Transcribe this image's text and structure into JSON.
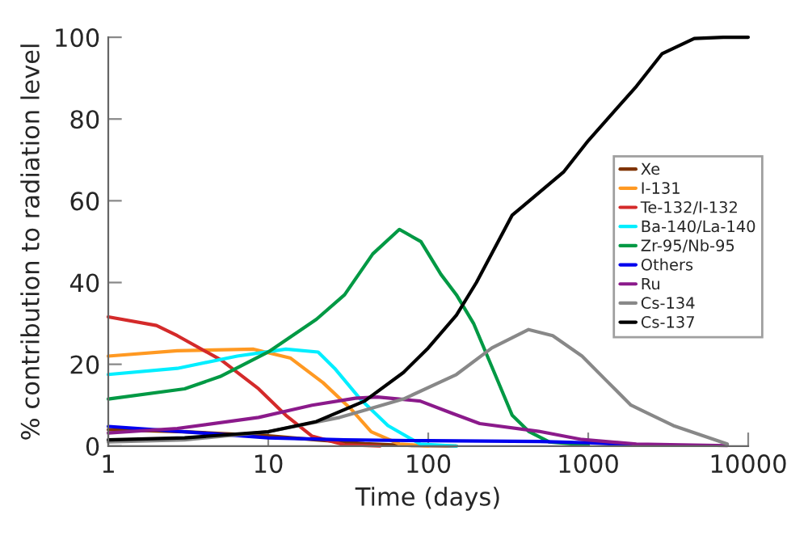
{
  "chart_data": {
    "type": "line",
    "xlabel": "Time (days)",
    "ylabel": "% contribution to radiation level",
    "log": "x",
    "xlim": [
      1,
      10000
    ],
    "xticks": [
      1,
      10,
      100,
      1000,
      10000
    ],
    "ylim": [
      0,
      100
    ],
    "yticks": [
      0,
      20,
      40,
      60,
      80,
      100
    ],
    "grid": false,
    "legend": "right",
    "marker": "none",
    "line_style": "solid",
    "series": [
      {
        "name": "Xe",
        "color": "#7f3300",
        "x": [
          1,
          3,
          10,
          20,
          40,
          80,
          150
        ],
        "values": [
          4,
          3.5,
          2.5,
          1.5,
          0.6,
          0.1,
          0
        ]
      },
      {
        "name": "I-131",
        "color": "#ff9922",
        "x": [
          1,
          2.7,
          8.1,
          13.8,
          22,
          33,
          44,
          66,
          100
        ],
        "values": [
          22,
          23.3,
          23.7,
          21.5,
          15.5,
          9,
          3.5,
          0.5,
          0
        ]
      },
      {
        "name": "Te-132/I-132",
        "color": "#d42a2a",
        "x": [
          1,
          2,
          2.7,
          5.1,
          8.7,
          12.9,
          18.8,
          30,
          50
        ],
        "values": [
          31.6,
          29.5,
          27,
          21,
          14,
          7.5,
          2.4,
          0.3,
          0
        ]
      },
      {
        "name": "Ba-140/La-140",
        "color": "#00eeff",
        "x": [
          1,
          2.7,
          6.4,
          12.9,
          20.5,
          26,
          37.6,
          56,
          89,
          150
        ],
        "values": [
          17.5,
          19,
          22,
          23.7,
          23,
          19,
          11.5,
          5,
          0.5,
          0
        ]
      },
      {
        "name": "Zr-95/Nb-95",
        "color": "#009944",
        "x": [
          1,
          3,
          5,
          10,
          20,
          30,
          45,
          66,
          90,
          120,
          150,
          192,
          265,
          335,
          424,
          570,
          1000
        ],
        "values": [
          11.5,
          14,
          17,
          23,
          31,
          37,
          47,
          53,
          50,
          42,
          37,
          30,
          17,
          7.5,
          3.6,
          1,
          0.2
        ]
      },
      {
        "name": "Others",
        "color": "#0000ee",
        "x": [
          1,
          3,
          10,
          30,
          100,
          500,
          1000,
          1850
        ],
        "values": [
          4.8,
          3.5,
          2,
          1.5,
          1.3,
          1.1,
          0.8,
          0.3
        ]
      },
      {
        "name": "Ru",
        "color": "#8b1a8b",
        "x": [
          1,
          2.7,
          8.7,
          18.8,
          35,
          48,
          89,
          141,
          210,
          490,
          915,
          2000,
          7400
        ],
        "values": [
          3.2,
          4.3,
          7,
          10,
          11.7,
          12,
          11,
          8,
          5.5,
          3.6,
          1.6,
          0.5,
          0.1
        ]
      },
      {
        "name": "Cs-134",
        "color": "#888888",
        "x": [
          1,
          3,
          10,
          28,
          70,
          150,
          250,
          424,
          600,
          915,
          1300,
          1850,
          3400,
          7400
        ],
        "values": [
          1,
          1.5,
          3.5,
          7,
          11.5,
          17.5,
          24,
          28.5,
          27,
          22,
          16,
          10,
          5,
          0.5
        ]
      },
      {
        "name": "Cs-137",
        "color": "#000000",
        "x": [
          1,
          3,
          10,
          20,
          40,
          70,
          100,
          150,
          200,
          335,
          400,
          700,
          1000,
          2000,
          2900,
          4600,
          7000,
          10000
        ],
        "values": [
          1.5,
          2,
          3.5,
          6,
          11,
          18,
          24,
          32,
          40,
          56.5,
          59,
          67,
          74.7,
          88,
          96,
          99.7,
          100,
          100
        ]
      }
    ]
  }
}
